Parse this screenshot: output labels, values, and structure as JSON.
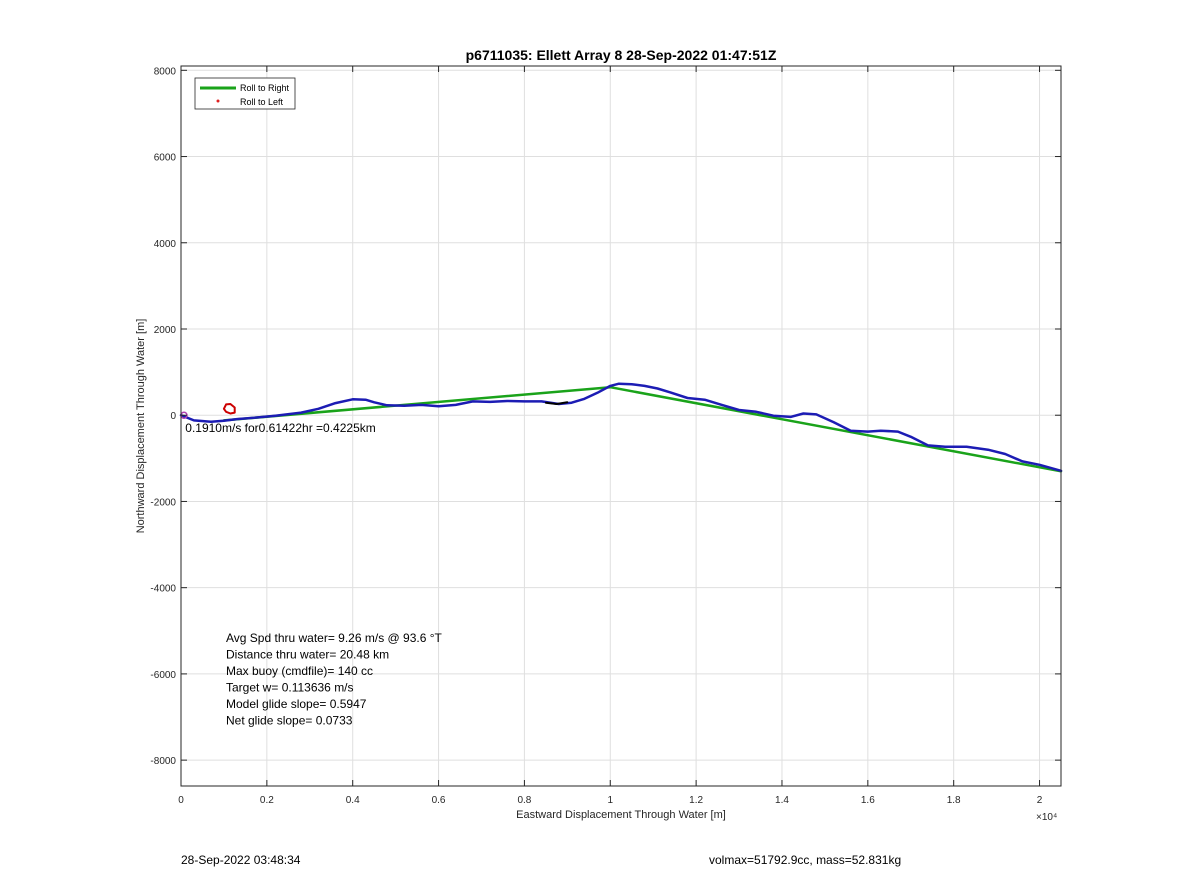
{
  "chart_data": {
    "type": "line",
    "title": "p6711035: Ellett Array 8 28-Sep-2022 01:47:51Z",
    "xlabel": "Eastward Displacement Through Water [m]",
    "ylabel": "Northward Displacement Through Water [m]",
    "xlim": [
      0,
      20500
    ],
    "ylim": [
      -8600,
      8100
    ],
    "x_exponent_label": "×10⁴",
    "xticks": [
      0,
      2000,
      4000,
      6000,
      8000,
      10000,
      12000,
      14000,
      16000,
      18000,
      20000
    ],
    "xtick_labels": [
      "0",
      "0.2",
      "0.4",
      "0.6",
      "0.8",
      "1",
      "1.2",
      "1.4",
      "1.6",
      "1.8",
      "2"
    ],
    "yticks": [
      8000,
      6000,
      4000,
      2000,
      0,
      -2000,
      -4000,
      -6000,
      -8000
    ],
    "ytick_labels": [
      "8000",
      "6000",
      "4000",
      "2000",
      "0",
      "-2000",
      "-4000",
      "-6000",
      "-8000"
    ],
    "grid": true,
    "legend": {
      "placement": "top-left",
      "entries": [
        {
          "label": "Roll to Right",
          "color": "#1aa31a",
          "style": "line"
        },
        {
          "label": "Roll to Left",
          "color": "#e02020",
          "style": "dot"
        }
      ]
    },
    "series": [
      {
        "name": "Roll to Right",
        "color": "#1aa31a",
        "x": [
          1000,
          10000,
          20500
        ],
        "y": [
          -120,
          650,
          -1300
        ]
      },
      {
        "color": "#1c1cb4",
        "x": [
          0,
          300,
          700,
          1000,
          1300,
          1700,
          2200,
          2800,
          3200,
          3600,
          4000,
          4300,
          4500,
          4800,
          5200,
          5600,
          6000,
          6400,
          6800,
          7200,
          7600,
          8000,
          8400,
          8800,
          9100,
          9400,
          9700,
          10000,
          10200,
          10500,
          10800,
          11100,
          11400,
          11800,
          12200,
          12600,
          13000,
          13400,
          13800,
          14200,
          14500,
          14800,
          15200,
          15600,
          16000,
          16300,
          16700,
          17000,
          17400,
          17800,
          18300,
          18800,
          19200,
          19600,
          20000,
          20500
        ],
        "y": [
          0,
          -120,
          -150,
          -130,
          -90,
          -60,
          -10,
          60,
          150,
          280,
          370,
          360,
          300,
          230,
          220,
          240,
          210,
          240,
          320,
          310,
          330,
          320,
          320,
          260,
          290,
          380,
          520,
          680,
          730,
          720,
          680,
          620,
          530,
          400,
          360,
          240,
          120,
          80,
          -10,
          -40,
          40,
          20,
          -160,
          -360,
          -380,
          -360,
          -380,
          -500,
          -700,
          -730,
          -730,
          -800,
          -900,
          -1070,
          -1150,
          -1290
        ]
      },
      {
        "color": "#000000",
        "x": [
          8500,
          8750,
          9000
        ],
        "y": [
          290,
          260,
          300
        ]
      },
      {
        "color": "#cc0000",
        "x": [
          1050,
          1000,
          1050,
          1150,
          1250,
          1250,
          1150,
          1050
        ],
        "y": [
          80,
          150,
          250,
          260,
          180,
          60,
          40,
          80
        ]
      }
    ],
    "annotations": [
      {
        "text": "Avg Spd thru water=  9.26 m/s @  93.6 °T"
      },
      {
        "text": "Distance thru water= 20.48 km"
      },
      {
        "text": "Max buoy (cmdfile)= 140 cc"
      },
      {
        "text": "Target w= 0.113636 m/s"
      },
      {
        "text": "Model glide slope= 0.5947"
      },
      {
        "text": "Net glide slope= 0.0733"
      }
    ],
    "current_label": {
      "text": "0.1910m/s for0.61422hr =0.4225km",
      "x": 100,
      "y": -60
    }
  },
  "footer": {
    "timestamp": "28-Sep-2022 03:48:34",
    "stats": "volmax=51792.9cc, mass=52.831kg"
  }
}
